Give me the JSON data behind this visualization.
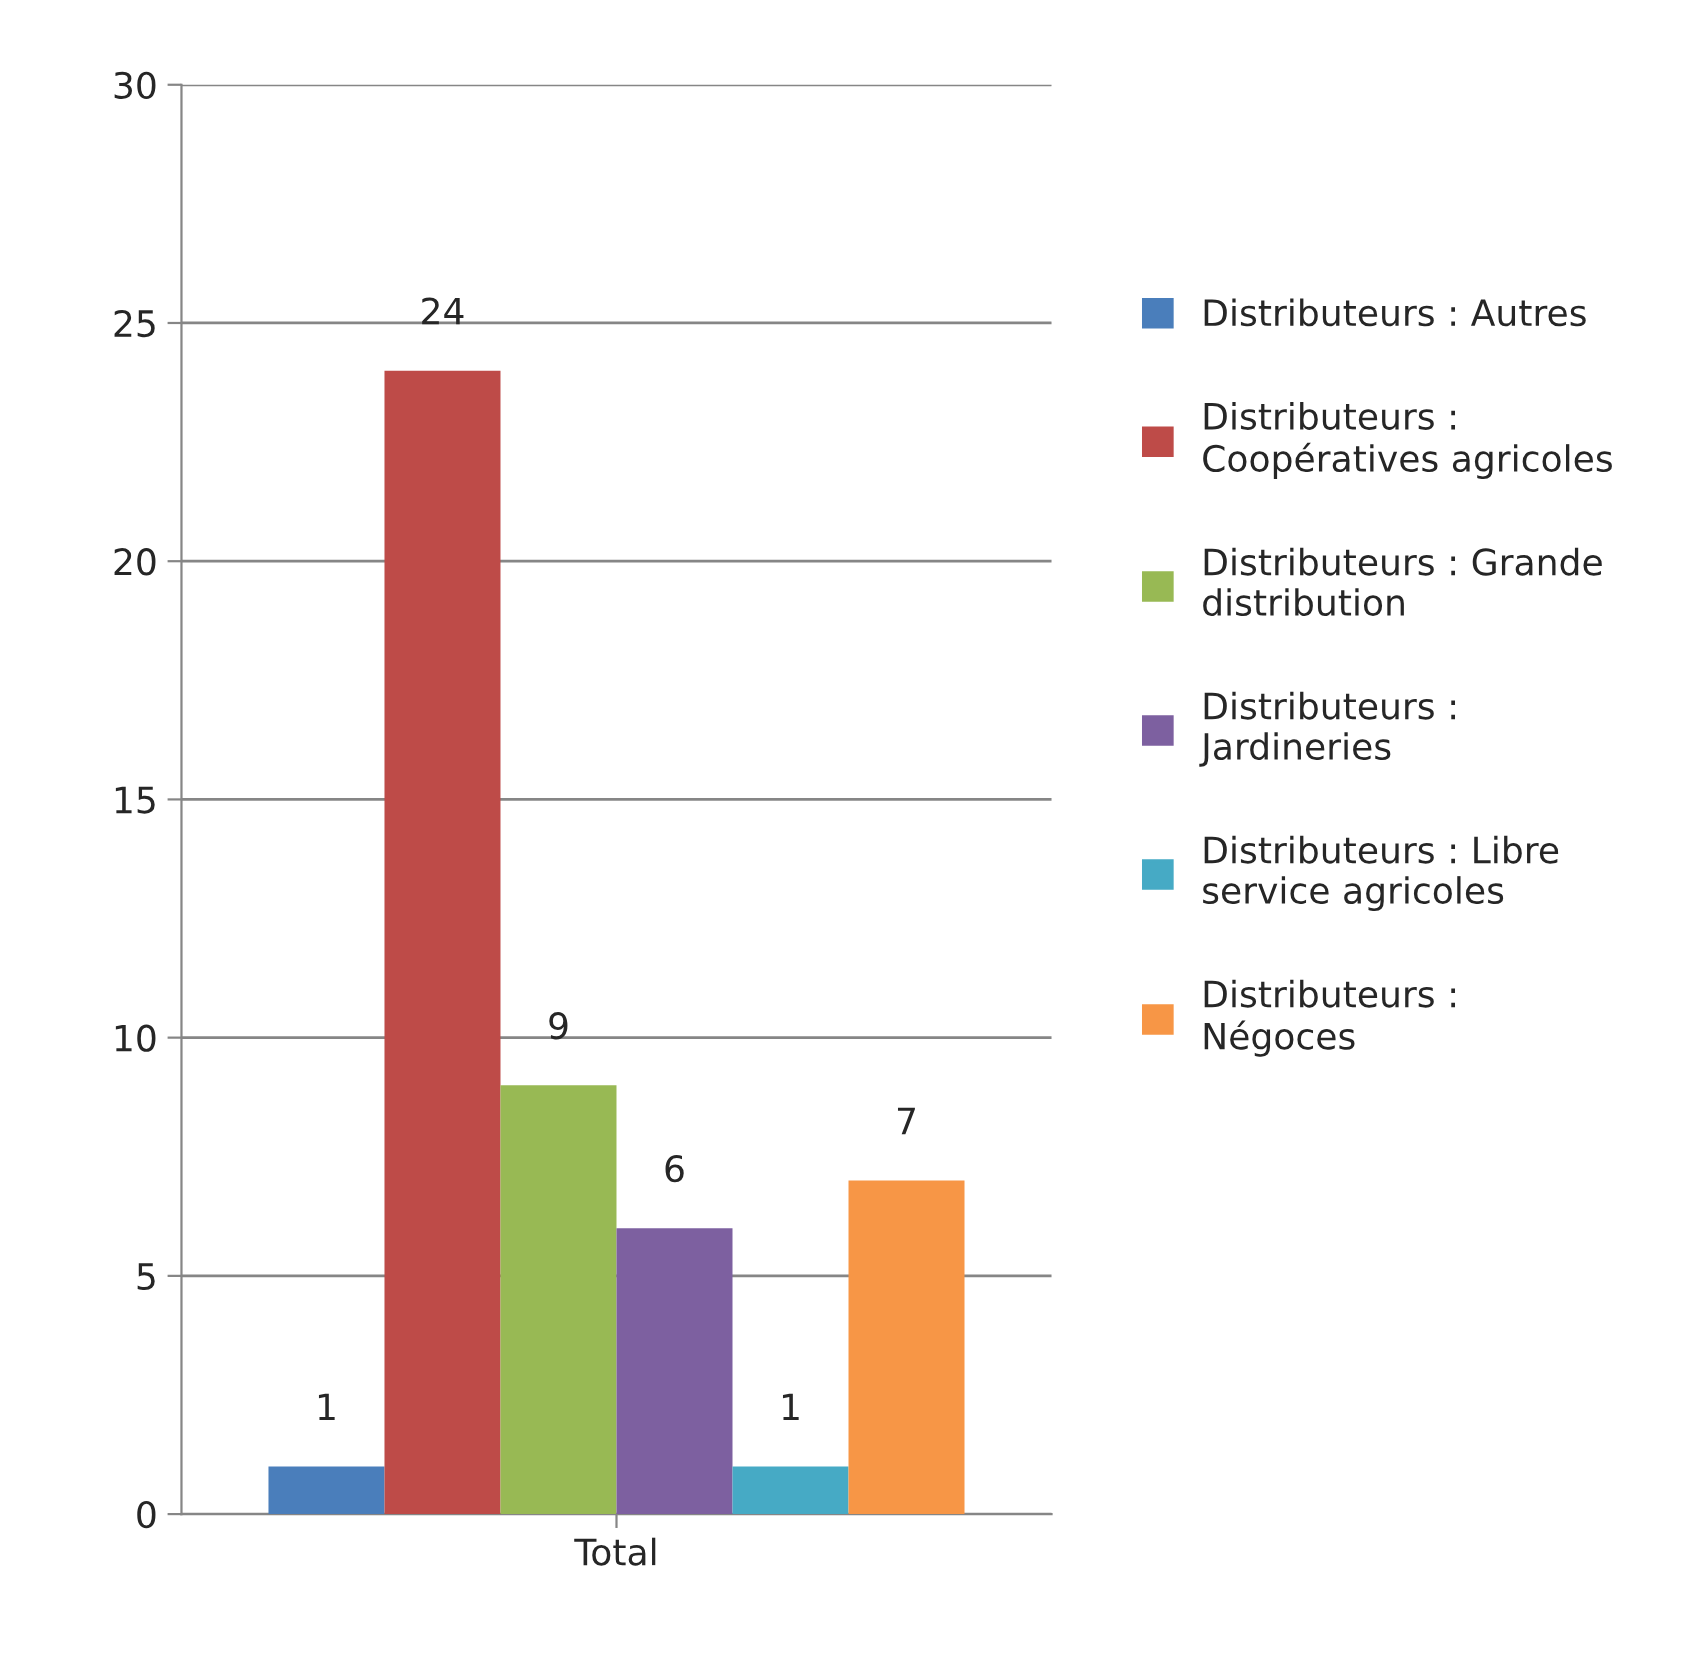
{
  "chart_data": {
    "type": "bar",
    "categories": [
      "Total"
    ],
    "series": [
      {
        "name": "Distributeurs : Autres",
        "color": "#4a7ebb",
        "values": [
          1
        ]
      },
      {
        "name": "Distributeurs : Coopératives agricoles",
        "color": "#be4b48",
        "values": [
          24
        ]
      },
      {
        "name": "Distributeurs : Grande distribution",
        "color": "#98b954",
        "values": [
          9
        ]
      },
      {
        "name": "Distributeurs : Jardineries",
        "color": "#7d60a0",
        "values": [
          6
        ]
      },
      {
        "name": "Distributeurs : Libre service agricoles",
        "color": "#46aac5",
        "values": [
          1
        ]
      },
      {
        "name": "Distributeurs : Négoces",
        "color": "#f79646",
        "values": [
          7
        ]
      }
    ],
    "ylim": [
      0,
      30
    ],
    "yticks": [
      0,
      5,
      10,
      15,
      20,
      25,
      30
    ],
    "grid": "y",
    "legend": "right",
    "data_labels": true
  }
}
